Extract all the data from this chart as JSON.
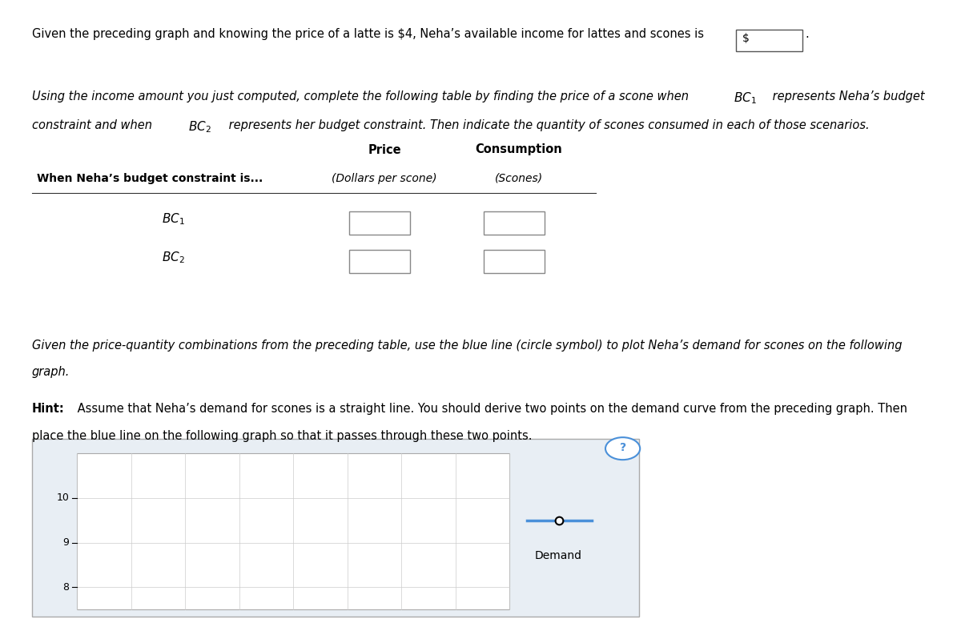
{
  "title_text": "Given the preceding graph and knowing the price of a latte is $4, Neha’s available income for lattes and scones is",
  "input_box_label": "$",
  "paragraph1": "Using the income amount you just computed, complete the following table by finding the price of a scone when",
  "bc1_label": "BC_1",
  "bc2_label": "BC_2",
  "table_header_col1": "When Neha’s budget constraint is...",
  "table_header_col2_top": "Price",
  "table_header_col2_bot": "(Dollars per scone)",
  "table_header_col3_top": "Consumption",
  "table_header_col3_bot": "(Scones)",
  "paragraph2_a": "Given the price-quantity combinations from the preceding table, use the blue line (circle symbol) to plot Neha’s demand for scones on the following",
  "paragraph2_b": "graph.",
  "hint_bold": "Hint:",
  "hint_rest": " Assume that Neha’s demand for scones is a straight line. You should derive two points on the demand curve from the preceding graph. Then",
  "hint2": "place the blue line on the following graph so that it passes through these two points.",
  "graph_yticks": [
    8,
    9,
    10
  ],
  "legend_label": "Demand",
  "bg_color": "#ffffff",
  "graph_bg": "#e8eef4",
  "graph_plot_bg": "#ffffff",
  "blue_line_color": "#4a90d9",
  "question_mark_color": "#4a90d9",
  "grid_color": "#cccccc",
  "y_min": 7.5,
  "y_max": 11.0,
  "n_vcols": 8
}
